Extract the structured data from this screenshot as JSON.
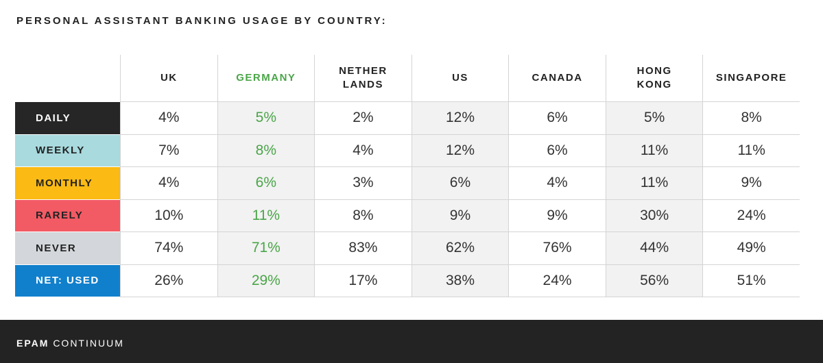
{
  "title": "PERSONAL ASSISTANT BANKING USAGE BY COUNTRY:",
  "brand": {
    "primary": "EPAM",
    "secondary": "CONTINUUM"
  },
  "colors": {
    "highlight": "#4aa548",
    "shade": "#f2f2f2",
    "footer": "#232323"
  },
  "chart_data": {
    "type": "table",
    "title": "PERSONAL ASSISTANT BANKING USAGE BY COUNTRY:",
    "highlight_column": 1,
    "shaded_columns": [
      1,
      3,
      5
    ],
    "columns": [
      {
        "lines": [
          "UK"
        ]
      },
      {
        "lines": [
          "GERMANY"
        ]
      },
      {
        "lines": [
          "NETHER",
          "LANDS"
        ]
      },
      {
        "lines": [
          "US"
        ]
      },
      {
        "lines": [
          "CANADA"
        ]
      },
      {
        "lines": [
          "HONG",
          "KONG"
        ]
      },
      {
        "lines": [
          "SINGAPORE"
        ]
      }
    ],
    "rows": [
      {
        "label": "DAILY",
        "color": "#262626",
        "text_color": "#ffffff",
        "values": [
          "4%",
          "5%",
          "2%",
          "12%",
          "6%",
          "5%",
          "8%"
        ]
      },
      {
        "label": "WEEKLY",
        "color": "#a8dade",
        "text_color": "#222222",
        "values": [
          "7%",
          "8%",
          "4%",
          "12%",
          "6%",
          "11%",
          "11%"
        ]
      },
      {
        "label": "MONTHLY",
        "color": "#fbba14",
        "text_color": "#222222",
        "values": [
          "4%",
          "6%",
          "3%",
          "6%",
          "4%",
          "11%",
          "9%"
        ]
      },
      {
        "label": "RARELY",
        "color": "#f25a64",
        "text_color": "#222222",
        "values": [
          "10%",
          "11%",
          "8%",
          "9%",
          "9%",
          "30%",
          "24%"
        ]
      },
      {
        "label": "NEVER",
        "color": "#d3d6da",
        "text_color": "#222222",
        "values": [
          "74%",
          "71%",
          "83%",
          "62%",
          "76%",
          "44%",
          "49%"
        ]
      },
      {
        "label": "NET: USED",
        "color": "#1180cc",
        "text_color": "#ffffff",
        "values": [
          "26%",
          "29%",
          "17%",
          "38%",
          "24%",
          "56%",
          "51%"
        ]
      }
    ]
  }
}
